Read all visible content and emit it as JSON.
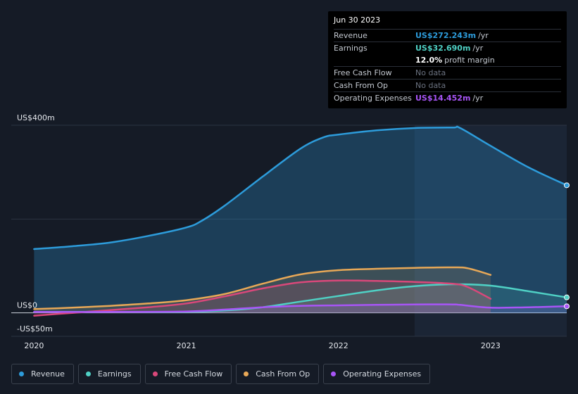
{
  "tooltip": {
    "date": "Jun 30 2023",
    "rows": [
      {
        "label": "Revenue",
        "value": "US$272.243m",
        "unit": "/yr",
        "color": "#2d9cdb"
      },
      {
        "label": "Earnings",
        "value": "US$32.690m",
        "unit": "/yr",
        "color": "#4fd1c5"
      },
      {
        "label": "",
        "value": "12.0%",
        "unit": "profit margin",
        "color": "#ffffff"
      },
      {
        "label": "Free Cash Flow",
        "value": "No data",
        "unit": "",
        "color": "#6b7280"
      },
      {
        "label": "Cash From Op",
        "value": "No data",
        "unit": "",
        "color": "#6b7280"
      },
      {
        "label": "Operating Expenses",
        "value": "US$14.452m",
        "unit": "/yr",
        "color": "#a855f7"
      }
    ]
  },
  "legend": [
    {
      "label": "Revenue",
      "color": "#2d9cdb"
    },
    {
      "label": "Earnings",
      "color": "#4fd1c5"
    },
    {
      "label": "Free Cash Flow",
      "color": "#d9487a"
    },
    {
      "label": "Cash From Op",
      "color": "#e8a857"
    },
    {
      "label": "Operating Expenses",
      "color": "#a855f7"
    }
  ],
  "chart_data": {
    "type": "area",
    "title": "",
    "xlabel": "",
    "ylabel": "",
    "ylim": [
      -50,
      400
    ],
    "y_tick_labels": [
      "US$400m",
      "US$0",
      "-US$50m"
    ],
    "y_ticks": [
      400,
      0,
      -50
    ],
    "x_tick_labels": [
      "2020",
      "2021",
      "2022",
      "2023"
    ],
    "x_ticks": [
      2020.0,
      2021.0,
      2022.0,
      2023.0
    ],
    "x_range": [
      2019.85,
      2023.5
    ],
    "shaded_region_start": 2022.5,
    "grid": true,
    "legend_position": "bottom",
    "series": [
      {
        "name": "Revenue",
        "color": "#2d9cdb",
        "points": [
          [
            2020.0,
            136
          ],
          [
            2020.25,
            142
          ],
          [
            2020.5,
            150
          ],
          [
            2020.75,
            164
          ],
          [
            2021.0,
            182
          ],
          [
            2021.1,
            196
          ],
          [
            2021.25,
            228
          ],
          [
            2021.5,
            290
          ],
          [
            2021.75,
            350
          ],
          [
            2021.9,
            374
          ],
          [
            2022.0,
            380
          ],
          [
            2022.25,
            389
          ],
          [
            2022.5,
            394
          ],
          [
            2022.75,
            395
          ],
          [
            2022.8,
            394
          ],
          [
            2023.0,
            356
          ],
          [
            2023.25,
            310
          ],
          [
            2023.5,
            272
          ]
        ]
      },
      {
        "name": "Earnings",
        "color": "#4fd1c5",
        "points": [
          [
            2020.0,
            2
          ],
          [
            2020.5,
            2
          ],
          [
            2021.0,
            2
          ],
          [
            2021.25,
            5
          ],
          [
            2021.5,
            12
          ],
          [
            2021.75,
            24
          ],
          [
            2022.0,
            36
          ],
          [
            2022.25,
            48
          ],
          [
            2022.5,
            57
          ],
          [
            2022.75,
            61
          ],
          [
            2023.0,
            58
          ],
          [
            2023.25,
            46
          ],
          [
            2023.5,
            33
          ]
        ]
      },
      {
        "name": "Free Cash Flow",
        "color": "#d9487a",
        "points": [
          [
            2020.0,
            -6
          ],
          [
            2020.25,
            0
          ],
          [
            2020.5,
            6
          ],
          [
            2020.75,
            12
          ],
          [
            2021.0,
            20
          ],
          [
            2021.25,
            35
          ],
          [
            2021.5,
            52
          ],
          [
            2021.75,
            65
          ],
          [
            2022.0,
            69
          ],
          [
            2022.25,
            68
          ],
          [
            2022.5,
            66
          ],
          [
            2022.75,
            62
          ],
          [
            2022.85,
            55
          ],
          [
            2023.0,
            30
          ]
        ]
      },
      {
        "name": "Cash From Op",
        "color": "#e8a857",
        "points": [
          [
            2020.0,
            8
          ],
          [
            2020.25,
            11
          ],
          [
            2020.5,
            15
          ],
          [
            2020.75,
            20
          ],
          [
            2021.0,
            27
          ],
          [
            2021.25,
            40
          ],
          [
            2021.5,
            62
          ],
          [
            2021.75,
            82
          ],
          [
            2022.0,
            91
          ],
          [
            2022.25,
            94
          ],
          [
            2022.5,
            96
          ],
          [
            2022.75,
            97
          ],
          [
            2022.85,
            95
          ],
          [
            2023.0,
            81
          ]
        ]
      },
      {
        "name": "Operating Expenses",
        "color": "#a855f7",
        "points": [
          [
            2020.0,
            2
          ],
          [
            2020.5,
            2
          ],
          [
            2021.0,
            3
          ],
          [
            2021.25,
            7
          ],
          [
            2021.5,
            12
          ],
          [
            2021.75,
            15
          ],
          [
            2022.0,
            16
          ],
          [
            2022.25,
            17
          ],
          [
            2022.5,
            18
          ],
          [
            2022.75,
            18
          ],
          [
            2022.8,
            17
          ],
          [
            2023.0,
            11
          ],
          [
            2023.25,
            12
          ],
          [
            2023.5,
            14
          ]
        ]
      }
    ]
  }
}
